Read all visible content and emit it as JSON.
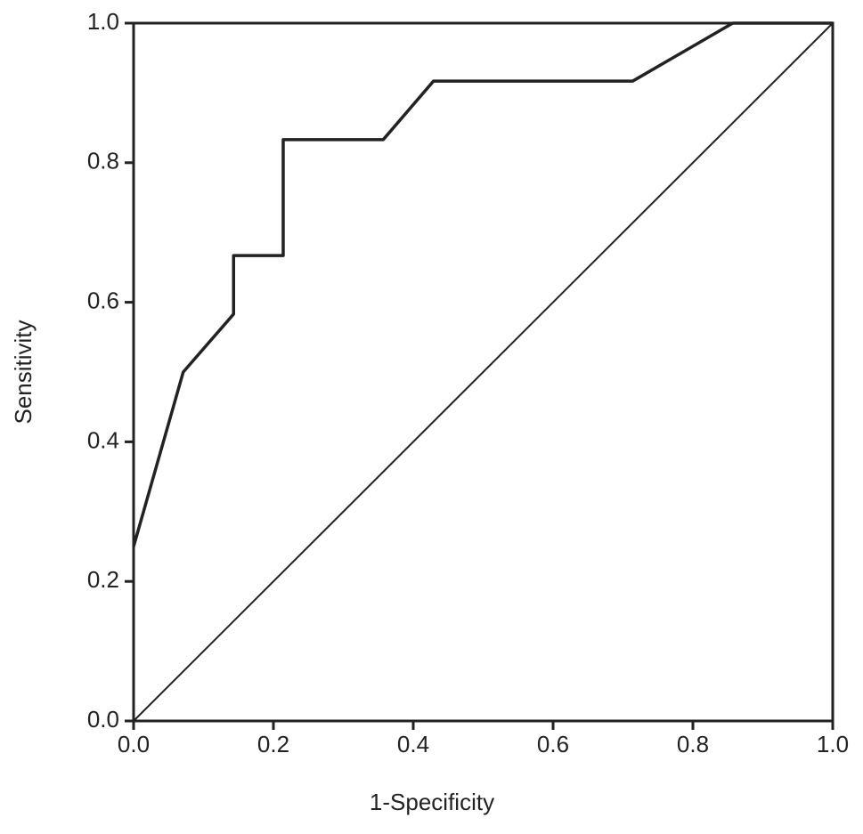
{
  "chart_data": {
    "type": "line",
    "x_label": "1-Specificity",
    "y_label": "Sensitivity",
    "xlim": [
      0,
      1
    ],
    "ylim": [
      0,
      1
    ],
    "xticks": [
      {
        "value": 0,
        "label": "0.0"
      },
      0.2,
      0.4,
      0.6,
      0.8,
      {
        "value": 1,
        "label": "1.0"
      }
    ],
    "yticks": [
      {
        "value": 0,
        "label": "0.0"
      },
      0.2,
      0.4,
      0.6,
      0.8,
      {
        "value": 1,
        "label": "1.0"
      }
    ],
    "series": [
      {
        "color": "#222222",
        "width": 3.5,
        "x": [
          0,
          0.071,
          0.143,
          0.143,
          0.214,
          0.214,
          0.357,
          0.429,
          0.714,
          0.857,
          1
        ],
        "values": [
          0.25,
          0.5,
          0.583,
          0.667,
          0.667,
          0.833,
          0.833,
          0.917,
          0.917,
          1,
          1
        ]
      },
      {
        "color": "#222222",
        "width": 2,
        "x": [
          0,
          1
        ],
        "values": [
          0,
          1
        ]
      }
    ]
  }
}
